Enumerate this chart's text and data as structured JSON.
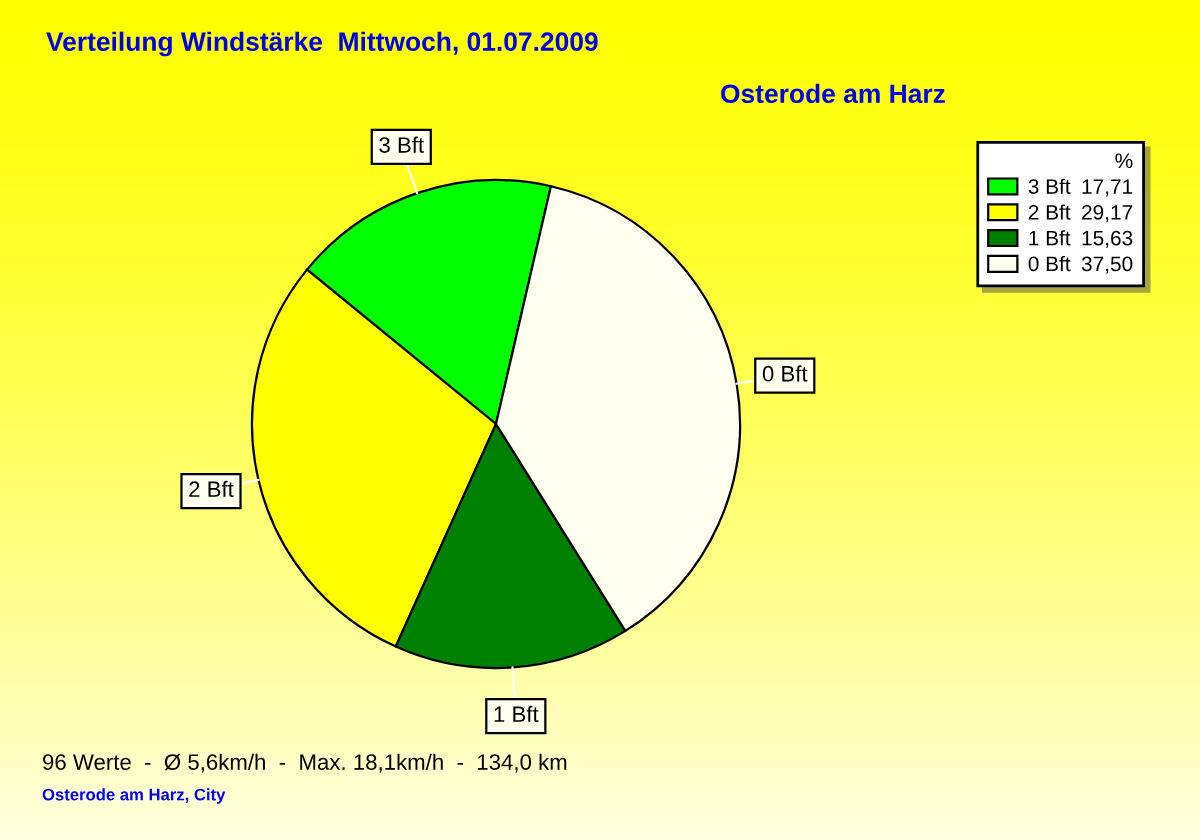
{
  "chart_data": {
    "type": "pie",
    "title": "Verteilung Windstärke  Mittwoch, 01.07.2009",
    "subtitle": "Osterode am Harz",
    "legend_title": "%",
    "categories": [
      "3 Bft",
      "2 Bft",
      "1 Bft",
      "0 Bft"
    ],
    "values": [
      17.71,
      29.17,
      15.63,
      37.5
    ],
    "value_labels": [
      "17,71",
      "29,17",
      "15,63",
      "37,50"
    ],
    "colors": [
      "#00ff00",
      "#ffff00",
      "#008000",
      "#fffff0"
    ],
    "legend": "top right",
    "annotations": [
      "96 Werte  -  Ø 5,6km/h  -  Max. 18,1km/h  -  134,0 km",
      "Osterode am Harz, City"
    ]
  }
}
